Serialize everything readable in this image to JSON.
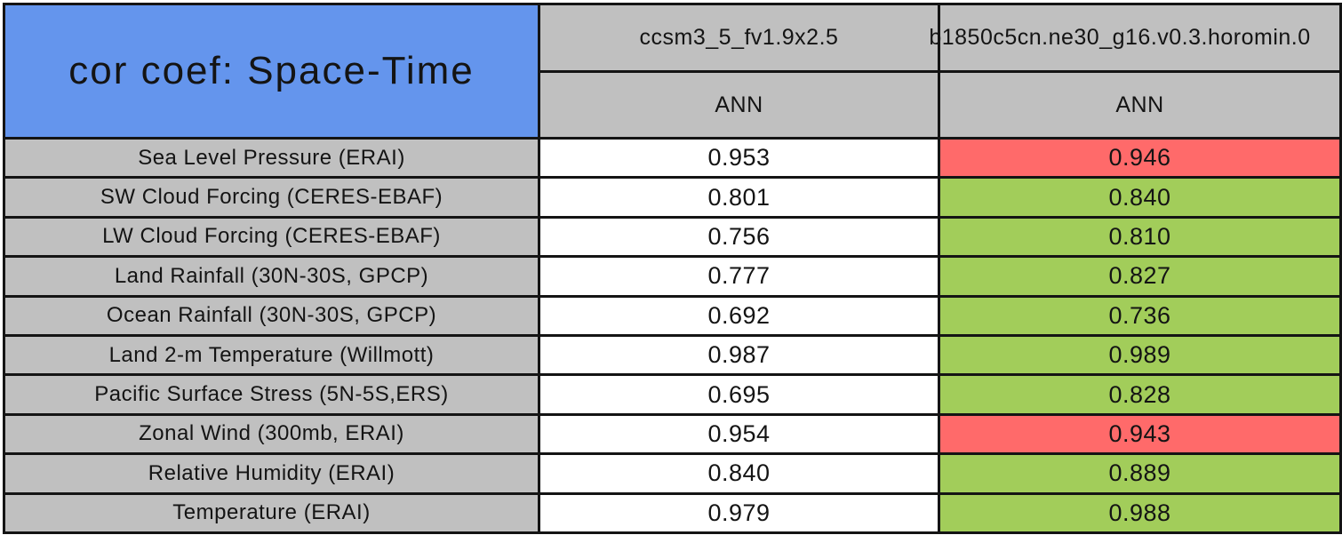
{
  "chart_data": {
    "type": "table",
    "title": "cor coef: Space-Time",
    "columns": [
      {
        "model": "ccsm3_5_fv1.9x2.5",
        "season": "ANN"
      },
      {
        "model": "b1850c5cn.ne30_g16.v0.3.horomin.0",
        "season": "ANN"
      }
    ],
    "rows": [
      {
        "label": "Sea Level Pressure (ERAI)",
        "model1": "0.953",
        "model2": "0.946",
        "model2_status": "worse"
      },
      {
        "label": "SW Cloud Forcing (CERES-EBAF)",
        "model1": "0.801",
        "model2": "0.840",
        "model2_status": "better"
      },
      {
        "label": "LW Cloud Forcing (CERES-EBAF)",
        "model1": "0.756",
        "model2": "0.810",
        "model2_status": "better"
      },
      {
        "label": "Land Rainfall (30N-30S, GPCP)",
        "model1": "0.777",
        "model2": "0.827",
        "model2_status": "better"
      },
      {
        "label": "Ocean Rainfall (30N-30S, GPCP)",
        "model1": "0.692",
        "model2": "0.736",
        "model2_status": "better"
      },
      {
        "label": "Land 2-m Temperature (Willmott)",
        "model1": "0.987",
        "model2": "0.989",
        "model2_status": "better"
      },
      {
        "label": "Pacific Surface Stress (5N-5S,ERS)",
        "model1": "0.695",
        "model2": "0.828",
        "model2_status": "better"
      },
      {
        "label": "Zonal Wind (300mb, ERAI)",
        "model1": "0.954",
        "model2": "0.943",
        "model2_status": "worse"
      },
      {
        "label": "Relative Humidity (ERAI)",
        "model1": "0.840",
        "model2": "0.889",
        "model2_status": "better"
      },
      {
        "label": "Temperature (ERAI)",
        "model1": "0.979",
        "model2": "0.988",
        "model2_status": "better"
      }
    ],
    "legend_note": "",
    "layout": {
      "grid": "on",
      "title_position": "top-left"
    }
  },
  "colors": {
    "title_bg": "#6495ED",
    "header_bg": "#C0C0C0",
    "label_bg": "#C0C0C0",
    "value_bg": "#FFFFFF",
    "better": "#A2CD5A",
    "worse": "#FF6A6A",
    "border": "#141414"
  }
}
